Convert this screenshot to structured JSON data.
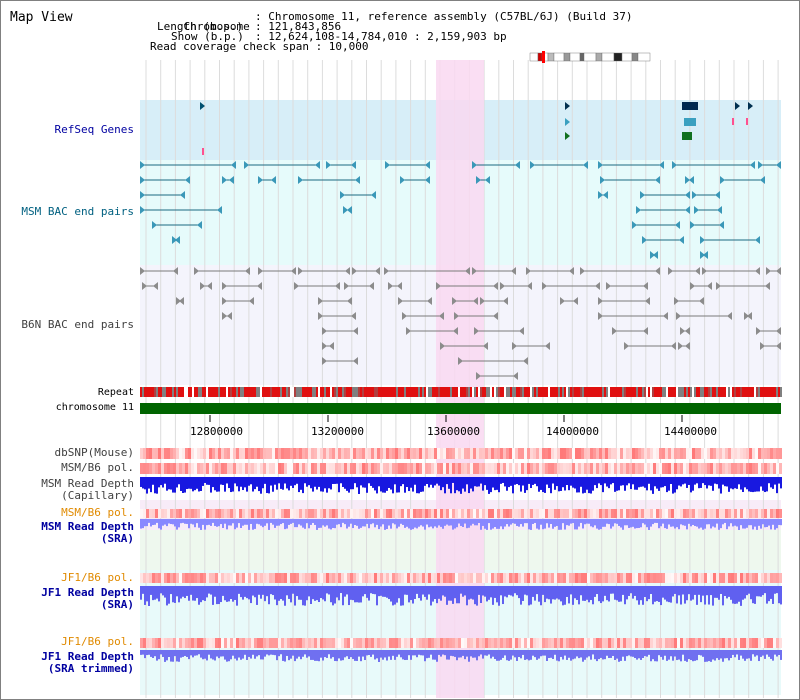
{
  "app_title": "Map View",
  "info": {
    "chromosome_label": "Chromosome",
    "chromosome_value": ": Chromosome 11, reference assembly (C57BL/6J) (Build 37)",
    "length_label": "Length (b.p.)",
    "length_value": ": 121,843,856",
    "show_label": "Show (b.p.)",
    "show_value": ": 12,624,108-14,784,010 : 2,159,903 bp",
    "coverage_line": "Read coverage check span : 10,000"
  },
  "tracks": {
    "refseq": "RefSeq Genes",
    "msm_bac": "MSM BAC end pairs",
    "b6n_bac": "B6N BAC end pairs",
    "repeat": "Repeat",
    "chromosome": "chromosome 11",
    "dbsnp": "dbSNP(Mouse)",
    "msm_b6_pol": "MSM/B6 pol.",
    "msm_read_depth_cap_1": "MSM Read Depth",
    "msm_read_depth_cap_2": "(Capillary)",
    "msm_b6_pol_2": "MSM/B6 pol.",
    "msm_read_depth_sra_1": "MSM Read Depth",
    "msm_read_depth_sra_2": "(SRA)",
    "jf1_b6_pol": "JF1/B6 pol.",
    "jf1_read_depth_sra_1": "JF1 Read Depth",
    "jf1_read_depth_sra_2": "(SRA)",
    "jf1_b6_pol_2": "JF1/B6 pol.",
    "jf1_read_depth_trim_1": "JF1 Read Depth",
    "jf1_read_depth_trim_2": "(SRA trimmed)"
  },
  "axis_ticks": [
    "12800000",
    "13200000",
    "13600000",
    "14000000",
    "14400000"
  ],
  "colors": {
    "refseq_bg": "#d7eef8",
    "msm_bac_bg": "#e6fbfb",
    "b6n_bac_bg": "#f4f4fc",
    "highlight": "#f9d8f1",
    "chromosome": "#006400",
    "msm_label": "#006080",
    "navy_label": "#0000a0",
    "orange_label": "#e08a00",
    "gray_label": "#404040"
  }
}
